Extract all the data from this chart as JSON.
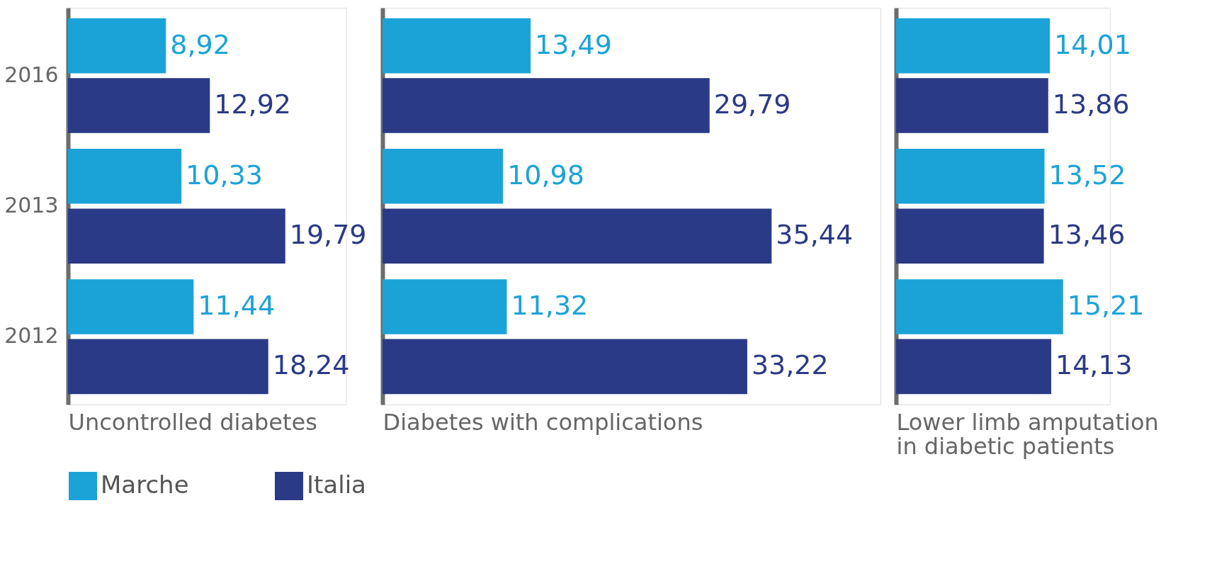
{
  "chart_data": [
    {
      "type": "bar",
      "orientation": "horizontal",
      "xlabel": "Uncontrolled diabetes",
      "categories": [
        "2016",
        "2013",
        "2012"
      ],
      "legend": "bottom",
      "tick_labels": "y",
      "series": [
        {
          "name": "Marche",
          "color": "#1ba3d8",
          "values": [
            8.92,
            10.33,
            11.44
          ],
          "value_labels": [
            "8,92",
            "10,33",
            "11,44"
          ]
        },
        {
          "name": "Italia",
          "color": "#2b3a86",
          "values": [
            12.92,
            19.79,
            18.24
          ],
          "value_labels": [
            "12,92",
            "19,79",
            "18,24"
          ]
        }
      ]
    },
    {
      "type": "bar",
      "orientation": "horizontal",
      "xlabel": "Diabetes with complications",
      "categories": [
        "2016",
        "2013",
        "2012"
      ],
      "legend": false,
      "tick_labels": false,
      "series": [
        {
          "name": "Marche",
          "color": "#1ba3d8",
          "values": [
            13.49,
            10.98,
            11.32
          ],
          "value_labels": [
            "13,49",
            "10,98",
            "11,32"
          ]
        },
        {
          "name": "Italia",
          "color": "#2b3a86",
          "values": [
            29.79,
            35.44,
            33.22
          ],
          "value_labels": [
            "29,79",
            "35,44",
            "33,22"
          ]
        }
      ]
    },
    {
      "type": "bar",
      "orientation": "horizontal",
      "xlabel": "Lower limb amputation in diabetic patients",
      "categories": [
        "2016",
        "2013",
        "2012"
      ],
      "legend": false,
      "tick_labels": false,
      "series": [
        {
          "name": "Marche",
          "color": "#1ba3d8",
          "values": [
            14.01,
            13.52,
            15.21
          ],
          "value_labels": [
            "14,01",
            "13,52",
            "15,21"
          ]
        },
        {
          "name": "Italia",
          "color": "#2b3a86",
          "values": [
            13.86,
            13.46,
            14.13
          ],
          "value_labels": [
            "13,86",
            "13,46",
            "14,13"
          ]
        }
      ]
    }
  ]
}
